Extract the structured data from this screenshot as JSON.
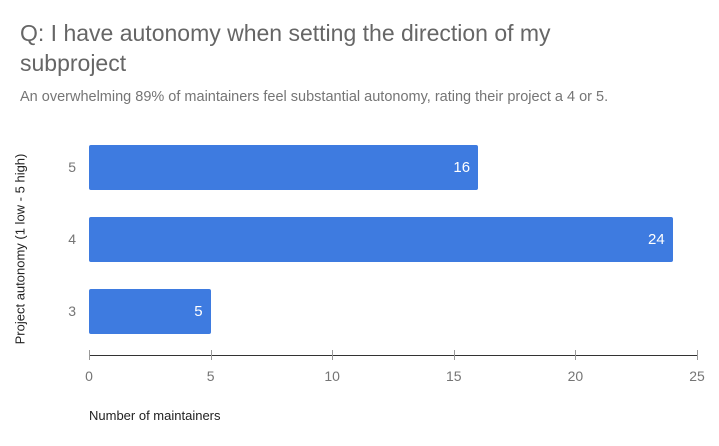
{
  "chart": {
    "title": "Q: I have autonomy when setting the direction of my subproject",
    "subtitle": "An overwhelming 89% of maintainers feel substantial autonomy, rating their project a 4 or 5.",
    "y_axis_title": "Project autonomy (1 low - 5 high)",
    "x_axis_title": "Number of maintainers"
  },
  "chart_data": {
    "type": "bar",
    "orientation": "horizontal",
    "title": "Q: I have autonomy when setting the direction of my subproject",
    "subtitle": "An overwhelming 89% of maintainers feel substantial autonomy, rating their project a 4 or 5.",
    "categories": [
      "5",
      "4",
      "3"
    ],
    "values": [
      16,
      24,
      5
    ],
    "bar_labels": [
      "16",
      "24",
      "5"
    ],
    "xlabel": "Number of maintainers",
    "ylabel": "Project autonomy (1 low - 5 high)",
    "xlim": [
      0,
      25
    ],
    "x_ticks": [
      0,
      5,
      10,
      15,
      20,
      25
    ],
    "grid": false,
    "legend": "none",
    "bar_color": "#3E7BE0",
    "bar_label_color": "#ffffff",
    "axis_line_color": "#333333",
    "tick_color": "#999999",
    "tick_label_color": "#757575",
    "title_color": "#666666",
    "subtitle_color": "#757575"
  }
}
